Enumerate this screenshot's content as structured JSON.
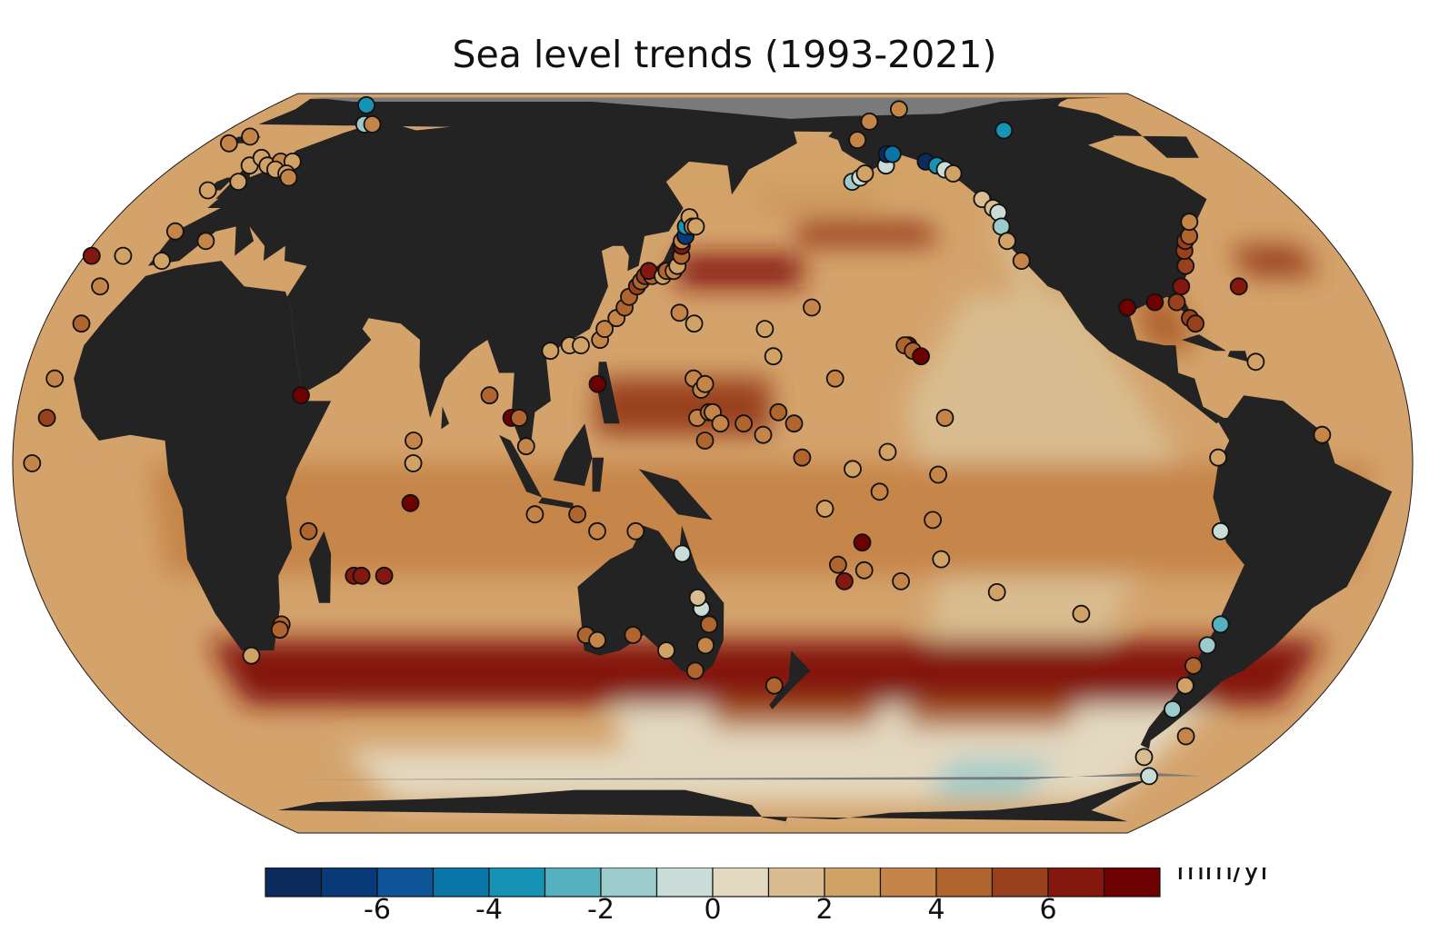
{
  "title": "Sea level trends (1993-2021)",
  "colorbar": {
    "unit": "mm/yr",
    "tick_labels": [
      "-6",
      "-4",
      "-2",
      "0",
      "2",
      "4",
      "6"
    ],
    "tick_values": [
      -6,
      -4,
      -2,
      0,
      2,
      4,
      6
    ],
    "range": [
      -8,
      8
    ],
    "bins": [
      {
        "from": -8,
        "to": -7,
        "color": "#0d2a5c"
      },
      {
        "from": -7,
        "to": -6,
        "color": "#083a77"
      },
      {
        "from": -6,
        "to": -5,
        "color": "#0d5596"
      },
      {
        "from": -5,
        "to": -4,
        "color": "#0a76a8"
      },
      {
        "from": -4,
        "to": -3,
        "color": "#1793b6"
      },
      {
        "from": -3,
        "to": -2,
        "color": "#56b1bf"
      },
      {
        "from": -2,
        "to": -1,
        "color": "#9bcccb"
      },
      {
        "from": -1,
        "to": 0,
        "color": "#cadcd8"
      },
      {
        "from": 0,
        "to": 1,
        "color": "#e3d8c0"
      },
      {
        "from": 1,
        "to": 2,
        "color": "#d9bd90"
      },
      {
        "from": 2,
        "to": 3,
        "color": "#d1a265"
      },
      {
        "from": 3,
        "to": 4,
        "color": "#c68548"
      },
      {
        "from": 4,
        "to": 5,
        "color": "#b0652f"
      },
      {
        "from": 5,
        "to": 6,
        "color": "#99411c"
      },
      {
        "from": 6,
        "to": 7,
        "color": "#84180f"
      },
      {
        "from": 7,
        "to": 8,
        "color": "#6d0000"
      }
    ]
  },
  "map": {
    "projection": "Equal Earth, Pacific-centered",
    "ocean_base_color": "#d4a36c",
    "land_color": "#232323",
    "ice_color": "#7a7a7a"
  },
  "tide_gauges": [
    {
      "lon": 18,
      "lat": 70,
      "trend": -1.2
    },
    {
      "lon": 21,
      "lat": 70,
      "trend": 3.0
    },
    {
      "lon": -19,
      "lat": 38,
      "trend": 2.5
    },
    {
      "lon": -20,
      "lat": 32,
      "trend": 3.5
    },
    {
      "lon": -20,
      "lat": 25,
      "trend": 4.5
    },
    {
      "lon": -22,
      "lat": 15,
      "trend": 3.5
    },
    {
      "lon": -22,
      "lat": 8,
      "trend": 5.0
    },
    {
      "lon": -25,
      "lat": 0,
      "trend": 3.0
    },
    {
      "lon": 43,
      "lat": 12,
      "trend": 7.5
    },
    {
      "lon": 45,
      "lat": -12,
      "trend": 4.0
    },
    {
      "lon": 55,
      "lat": -20,
      "trend": 6.5
    },
    {
      "lon": 57,
      "lat": -20,
      "trend": 6.0
    },
    {
      "lon": 63,
      "lat": -20,
      "trend": 6.5
    },
    {
      "lon": 32,
      "lat": -29,
      "trend": 4.0
    },
    {
      "lon": 31,
      "lat": -30,
      "trend": 4.5
    },
    {
      "lon": 20,
      "lat": -35,
      "trend": 2.5
    },
    {
      "lon": 73,
      "lat": 4,
      "trend": 3.0
    },
    {
      "lon": 73,
      "lat": 0,
      "trend": 2.5
    },
    {
      "lon": 72,
      "lat": -7,
      "trend": 7.5
    },
    {
      "lon": 92,
      "lat": 12,
      "trend": 4.5
    },
    {
      "lon": 98,
      "lat": 8,
      "trend": 7.5
    },
    {
      "lon": 100,
      "lat": 8,
      "trend": 4.5
    },
    {
      "lon": 102,
      "lat": 3,
      "trend": 3.0
    },
    {
      "lon": 107,
      "lat": 20,
      "trend": 2.5
    },
    {
      "lon": 112,
      "lat": 21,
      "trend": 2.0
    },
    {
      "lon": 115,
      "lat": 21,
      "trend": 2.5
    },
    {
      "lon": 120,
      "lat": 14,
      "trend": 7.5
    },
    {
      "lon": 104,
      "lat": -9,
      "trend": 3.0
    },
    {
      "lon": 115,
      "lat": -9,
      "trend": 4.0
    },
    {
      "lon": 120,
      "lat": -12,
      "trend": 3.5
    },
    {
      "lon": 130,
      "lat": -12,
      "trend": 3.5
    },
    {
      "lon": 115,
      "lat": -31,
      "trend": 4.5
    },
    {
      "lon": 118,
      "lat": -32,
      "trend": 3.5
    },
    {
      "lon": 128,
      "lat": -31,
      "trend": 4.0
    },
    {
      "lon": 137,
      "lat": -34,
      "trend": 2.0
    },
    {
      "lon": 145,
      "lat": -38,
      "trend": 4.5
    },
    {
      "lon": 148,
      "lat": -33,
      "trend": 3.5
    },
    {
      "lon": 149,
      "lat": -29,
      "trend": 4.0
    },
    {
      "lon": 147,
      "lat": -26,
      "trend": -1.0
    },
    {
      "lon": 146,
      "lat": -24,
      "trend": 1.5
    },
    {
      "lon": 142,
      "lat": -16,
      "trend": -0.5
    },
    {
      "lon": 168,
      "lat": -41,
      "trend": 4.0
    },
    {
      "lon": 120,
      "lat": 22,
      "trend": 3.5
    },
    {
      "lon": 121,
      "lat": 24,
      "trend": 3.5
    },
    {
      "lon": 124,
      "lat": 26,
      "trend": 3.5
    },
    {
      "lon": 126,
      "lat": 28,
      "trend": 4.0
    },
    {
      "lon": 127,
      "lat": 30,
      "trend": 4.5
    },
    {
      "lon": 129,
      "lat": 32,
      "trend": 5.0
    },
    {
      "lon": 130,
      "lat": 33,
      "trend": 4.0
    },
    {
      "lon": 131,
      "lat": 34,
      "trend": 5.0
    },
    {
      "lon": 133,
      "lat": 34,
      "trend": 4.5
    },
    {
      "lon": 132,
      "lat": 35,
      "trend": 6.5
    },
    {
      "lon": 136,
      "lat": 34,
      "trend": 2.5
    },
    {
      "lon": 137,
      "lat": 35,
      "trend": 4.0
    },
    {
      "lon": 139,
      "lat": 35,
      "trend": 3.0
    },
    {
      "lon": 140,
      "lat": 36,
      "trend": 2.5
    },
    {
      "lon": 141,
      "lat": 38,
      "trend": 4.5
    },
    {
      "lon": 141,
      "lat": 40,
      "trend": 6.5
    },
    {
      "lon": 141,
      "lat": 41,
      "trend": 3.0
    },
    {
      "lon": 142,
      "lat": 42,
      "trend": -6.5
    },
    {
      "lon": 142,
      "lat": 44,
      "trend": -3.5
    },
    {
      "lon": 143,
      "lat": 46,
      "trend": 2.5
    },
    {
      "lon": 144,
      "lat": 44,
      "trend": 3.0
    },
    {
      "lon": 145,
      "lat": 44,
      "trend": 2.0
    },
    {
      "lon": 141,
      "lat": 27,
      "trend": 3.0
    },
    {
      "lon": 145,
      "lat": 25,
      "trend": 2.0
    },
    {
      "lon": 145,
      "lat": 15,
      "trend": 3.0
    },
    {
      "lon": 147,
      "lat": 13,
      "trend": 3.0
    },
    {
      "lon": 148,
      "lat": 14,
      "trend": 3.5
    },
    {
      "lon": 146,
      "lat": 8,
      "trend": 3.5
    },
    {
      "lon": 149,
      "lat": 9,
      "trend": 4.5
    },
    {
      "lon": 150,
      "lat": 9,
      "trend": 3.5
    },
    {
      "lon": 148,
      "lat": 4,
      "trend": 4.0
    },
    {
      "lon": 152,
      "lat": 7,
      "trend": 3.5
    },
    {
      "lon": 158,
      "lat": 7,
      "trend": 4.5
    },
    {
      "lon": 163,
      "lat": 5,
      "trend": 3.5
    },
    {
      "lon": 167,
      "lat": 9,
      "trend": 4.0
    },
    {
      "lon": 171,
      "lat": 7,
      "trend": 4.5
    },
    {
      "lon": 173,
      "lat": 1,
      "trend": 4.0
    },
    {
      "lon": 179,
      "lat": -8,
      "trend": 2.0
    },
    {
      "lon": 166,
      "lat": 19,
      "trend": 2.5
    },
    {
      "lon": 164,
      "lat": 24,
      "trend": 2.5
    },
    {
      "lon": 177,
      "lat": 28,
      "trend": 3.5
    },
    {
      "lon": -178,
      "lat": 15,
      "trend": 3.0
    },
    {
      "lon": -174,
      "lat": -1,
      "trend": 2.5
    },
    {
      "lon": -177,
      "lat": -18,
      "trend": 4.5
    },
    {
      "lon": -175,
      "lat": -21,
      "trend": 6.0
    },
    {
      "lon": -171,
      "lat": -14,
      "trend": 7.5
    },
    {
      "lon": -160,
      "lat": -21,
      "trend": 3.0
    },
    {
      "lon": -170,
      "lat": -19,
      "trend": 3.5
    },
    {
      "lon": -165,
      "lat": 2,
      "trend": 2.0
    },
    {
      "lon": -167,
      "lat": -5,
      "trend": 3.0
    },
    {
      "lon": -158,
      "lat": 21,
      "trend": 7.0
    },
    {
      "lon": -159,
      "lat": 21,
      "trend": 4.5
    },
    {
      "lon": -157,
      "lat": 20,
      "trend": 4.5
    },
    {
      "lon": -155,
      "lat": 19,
      "trend": 7.5
    },
    {
      "lon": -150,
      "lat": 8,
      "trend": 3.0
    },
    {
      "lon": -152,
      "lat": -2,
      "trend": 3.0
    },
    {
      "lon": -153,
      "lat": -10,
      "trend": 3.0
    },
    {
      "lon": -150,
      "lat": -17,
      "trend": 2.5
    },
    {
      "lon": -165,
      "lat": 54,
      "trend": -1.5
    },
    {
      "lon": -162,
      "lat": 55,
      "trend": -1.0
    },
    {
      "lon": -160,
      "lat": 56,
      "trend": 2.5
    },
    {
      "lon": -152,
      "lat": 58,
      "trend": -0.5
    },
    {
      "lon": -150,
      "lat": 61,
      "trend": -7.5
    },
    {
      "lon": -148,
      "lat": 61,
      "trend": -4.5
    },
    {
      "lon": -138,
      "lat": 59,
      "trend": -7.5
    },
    {
      "lon": -135,
      "lat": 58,
      "trend": -3.5
    },
    {
      "lon": -133,
      "lat": 57,
      "trend": -0.5
    },
    {
      "lon": -131,
      "lat": 56,
      "trend": 2.5
    },
    {
      "lon": -158,
      "lat": 65,
      "trend": 3.5
    },
    {
      "lon": -150,
      "lat": 71,
      "trend": 3.5
    },
    {
      "lon": -126,
      "lat": 50,
      "trend": 1.5
    },
    {
      "lon": -124,
      "lat": 48,
      "trend": 1.5
    },
    {
      "lon": -123,
      "lat": 47,
      "trend": -0.5
    },
    {
      "lon": -124,
      "lat": 44,
      "trend": -1.5
    },
    {
      "lon": -124,
      "lat": 41,
      "trend": 2.5
    },
    {
      "lon": -122,
      "lat": 37,
      "trend": 3.5
    },
    {
      "lon": -102,
      "lat": 68,
      "trend": -3.5
    },
    {
      "lon": -97,
      "lat": 28,
      "trend": 7.0
    },
    {
      "lon": -89,
      "lat": 29,
      "trend": 7.5
    },
    {
      "lon": -83,
      "lat": 29,
      "trend": 5.5
    },
    {
      "lon": -81,
      "lat": 26,
      "trend": 5.5
    },
    {
      "lon": -80,
      "lat": 25,
      "trend": 5.0
    },
    {
      "lon": -80,
      "lat": 32,
      "trend": 6.0
    },
    {
      "lon": -76,
      "lat": 36,
      "trend": 5.0
    },
    {
      "lon": -74,
      "lat": 39,
      "trend": 5.0
    },
    {
      "lon": -72,
      "lat": 41,
      "trend": 5.5
    },
    {
      "lon": -70,
      "lat": 42,
      "trend": 4.5
    },
    {
      "lon": -67,
      "lat": 45,
      "trend": 3.0
    },
    {
      "lon": -67,
      "lat": 18,
      "trend": 2.5
    },
    {
      "lon": -64,
      "lat": 32,
      "trend": 6.0
    },
    {
      "lon": -80,
      "lat": 1,
      "trend": 2.0
    },
    {
      "lon": -78,
      "lat": -12,
      "trend": -1.0
    },
    {
      "lon": -71,
      "lat": -29,
      "trend": -2.5
    },
    {
      "lon": -72,
      "lat": -33,
      "trend": -1.5
    },
    {
      "lon": -73,
      "lat": -37,
      "trend": 4.5
    },
    {
      "lon": -72,
      "lat": -41,
      "trend": 2.0
    },
    {
      "lon": -71,
      "lat": -46,
      "trend": -2.0
    },
    {
      "lon": -110,
      "lat": -27,
      "trend": 2.0
    },
    {
      "lon": -134,
      "lat": -23,
      "trend": 2.5
    },
    {
      "lon": -60,
      "lat": -52,
      "trend": 3.0
    },
    {
      "lon": -58,
      "lat": -62,
      "trend": -0.5
    },
    {
      "lon": -67,
      "lat": -57,
      "trend": 1.5
    },
    {
      "lon": -53,
      "lat": 5,
      "trend": 3.5
    },
    {
      "lon": -22,
      "lat": 64,
      "trend": 3.0
    },
    {
      "lon": -18,
      "lat": 66,
      "trend": 3.0
    },
    {
      "lon": -10,
      "lat": 52,
      "trend": 2.5
    },
    {
      "lon": -5,
      "lat": 58,
      "trend": 2.5
    },
    {
      "lon": -3,
      "lat": 54,
      "trend": 2.5
    },
    {
      "lon": -4,
      "lat": 60,
      "trend": 2.0
    },
    {
      "lon": 1,
      "lat": 58,
      "trend": 2.5
    },
    {
      "lon": 4,
      "lat": 59,
      "trend": 3.5
    },
    {
      "lon": 5,
      "lat": 57,
      "trend": 2.5
    },
    {
      "lon": 8,
      "lat": 59,
      "trend": 2.0
    },
    {
      "lon": 10,
      "lat": 56,
      "trend": 2.0
    },
    {
      "lon": 12,
      "lat": 55,
      "trend": 3.5
    },
    {
      "lon": -9,
      "lat": 43,
      "trend": 3.0
    },
    {
      "lon": -7,
      "lat": 37,
      "trend": 2.5
    },
    {
      "lon": 2,
      "lat": 41,
      "trend": 3.0
    },
    {
      "lon": -28,
      "lat": 38,
      "trend": 6.0
    },
    {
      "lon": 8,
      "lat": 78,
      "trend": -3.5
    },
    {
      "lon": -135,
      "lat": 76,
      "trend": 3.5
    }
  ]
}
